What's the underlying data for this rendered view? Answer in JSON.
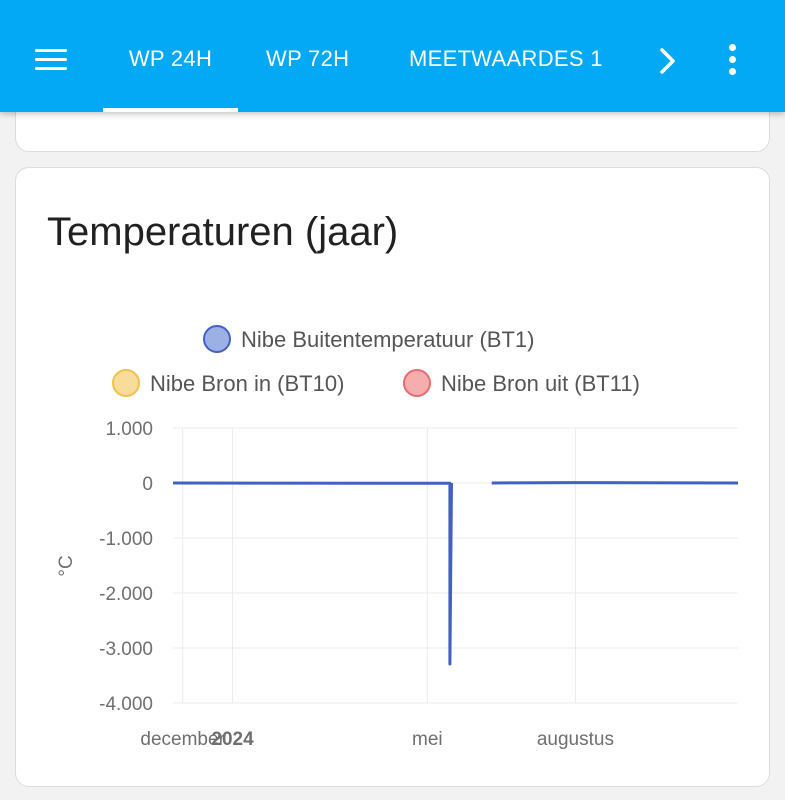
{
  "header": {
    "menu_icon": "menu-icon",
    "tabs": [
      {
        "label": "WP 24H",
        "active": true
      },
      {
        "label": "WP 72H",
        "active": false
      },
      {
        "label": "MEETWAARDES 1",
        "active": false
      }
    ],
    "next_icon": "chevron-right-icon",
    "overflow_icon": "dots-vertical-icon",
    "bg_color": "#03a9f4"
  },
  "card": {
    "title": "Temperaturen (jaar)"
  },
  "legend": [
    {
      "label": "Nibe Buitentemperatuur (BT1)",
      "color": "#4361c2",
      "fill": "#9db0e6"
    },
    {
      "label": "Nibe Bron in (BT10)",
      "color": "#f0c24b",
      "fill": "#f7dc9a"
    },
    {
      "label": "Nibe Bron uit (BT11)",
      "color": "#e86c6c",
      "fill": "#f6adad"
    }
  ],
  "chart_data": {
    "type": "line",
    "ylabel": "°C",
    "ylim": [
      -4000,
      1000
    ],
    "yticks": [
      1000,
      0,
      -1000,
      -2000,
      -3000,
      -4000
    ],
    "ytick_labels": [
      "1.000",
      "0",
      "-1.000",
      "-2.000",
      "-3.000",
      "-4.000"
    ],
    "xtick_labels": [
      {
        "label": "december",
        "bold": false
      },
      {
        "label": "2024",
        "bold": true
      },
      {
        "label": "mei",
        "bold": false
      },
      {
        "label": "augustus",
        "bold": false
      }
    ],
    "x_range": [
      "2023-11-25",
      "2024-11-10"
    ],
    "xtick_dates": [
      "2023-12-01",
      "2024-01-01",
      "2024-05-01",
      "2024-08-01"
    ],
    "grid": true,
    "legend_position": "top",
    "series": [
      {
        "name": "Nibe Buitentemperatuur (BT1)",
        "color": "#4361c2",
        "segments": [
          [
            [
              "2023-11-25",
              0
            ],
            [
              "2024-05-15",
              -5
            ],
            [
              "2024-05-15",
              -3290
            ],
            [
              "2024-05-16",
              0
            ]
          ],
          [
            [
              "2024-06-10",
              0
            ],
            [
              "2024-08-01",
              8
            ],
            [
              "2024-11-10",
              0
            ]
          ]
        ]
      },
      {
        "name": "Nibe Bron in (BT10)",
        "color": "#f0c24b",
        "segments": []
      },
      {
        "name": "Nibe Bron uit (BT11)",
        "color": "#e86c6c",
        "segments": []
      }
    ]
  }
}
